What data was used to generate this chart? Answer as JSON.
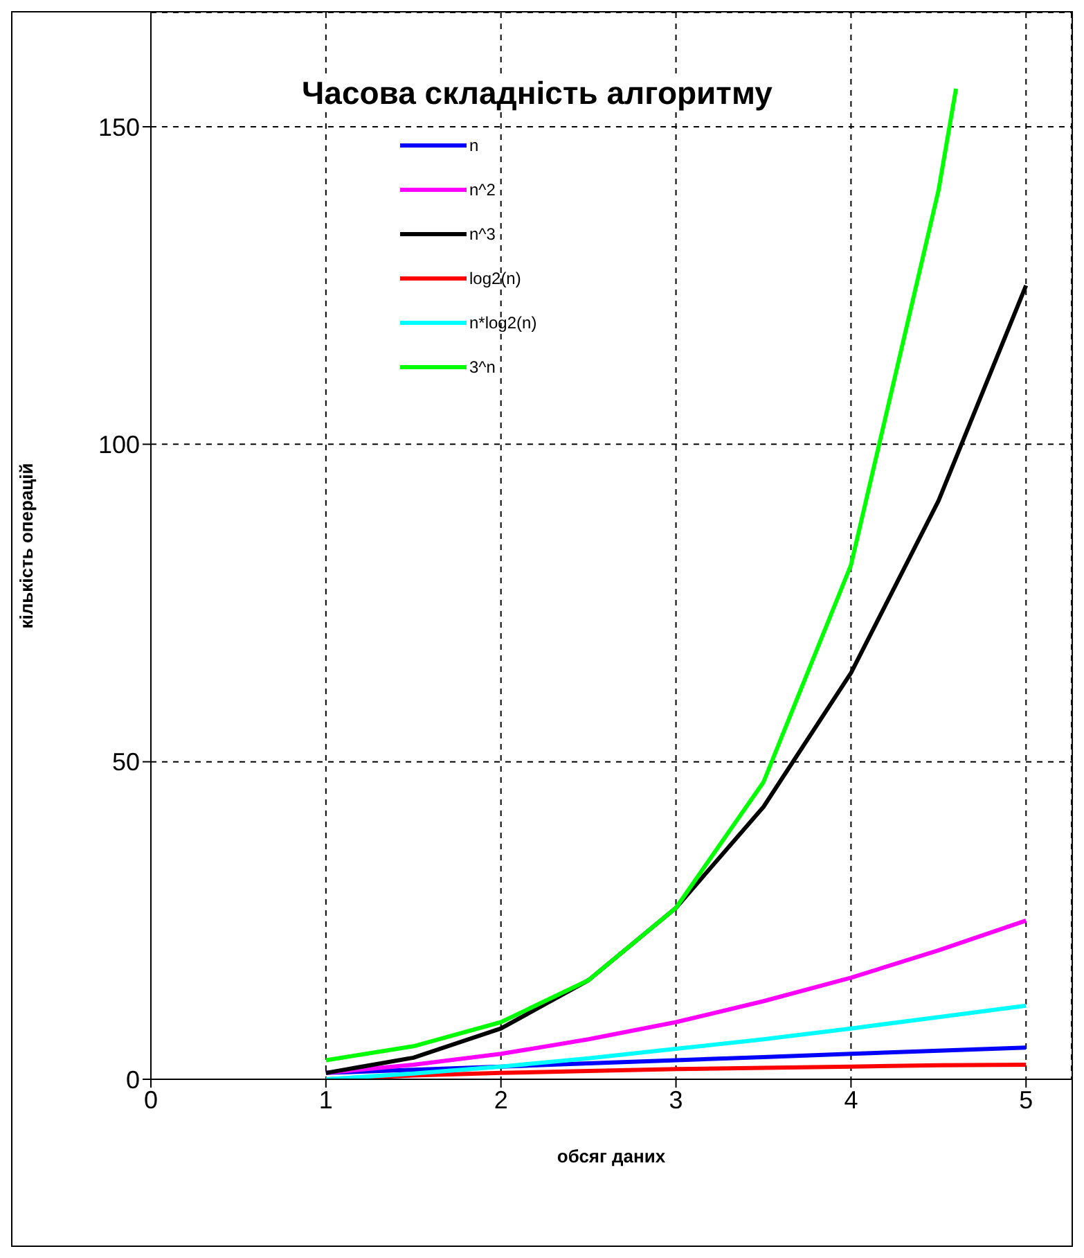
{
  "chart_data": {
    "type": "line",
    "title": "Часова складність алгоритму",
    "xlabel": "обсяг даних",
    "ylabel": "кількість операцій",
    "x": [
      1,
      1.5,
      2,
      2.5,
      3,
      3.5,
      4,
      4.5,
      5
    ],
    "series": [
      {
        "name": "n",
        "color": "#0000ff",
        "values": [
          1,
          1.5,
          2,
          2.5,
          3,
          3.5,
          4,
          4.5,
          5
        ]
      },
      {
        "name": "n^2",
        "color": "#ff00ff",
        "values": [
          1,
          2.3,
          4,
          6.3,
          9,
          12.3,
          16,
          20.3,
          25
        ]
      },
      {
        "name": "n^3",
        "color": "#000000",
        "values": [
          1,
          3.4,
          8,
          15.6,
          27,
          42.9,
          64,
          91.1,
          125
        ]
      },
      {
        "name": "log2(n)",
        "color": "#ff0000",
        "values": [
          0,
          0.6,
          1,
          1.3,
          1.6,
          1.8,
          2,
          2.2,
          2.3
        ]
      },
      {
        "name": "n*log2(n)",
        "color": "#00ffff",
        "values": [
          0,
          0.9,
          2,
          3.3,
          4.8,
          6.3,
          8,
          9.8,
          11.6
        ]
      },
      {
        "name": "3^n",
        "color": "#00ff00",
        "x": [
          1,
          1.5,
          2,
          2.5,
          3,
          3.5,
          4,
          4.5,
          4.6
        ],
        "values": [
          3,
          5.2,
          9,
          15.6,
          27,
          46.8,
          81,
          140,
          156
        ]
      }
    ],
    "xlim": [
      0,
      5.26
    ],
    "xticks": [
      0,
      1,
      2,
      3,
      4,
      5
    ],
    "ylim": [
      0,
      168
    ],
    "yticks": [
      0,
      50,
      100,
      150
    ],
    "grid": true,
    "legend": "top left",
    "marker": "none",
    "line_style": "solid"
  }
}
